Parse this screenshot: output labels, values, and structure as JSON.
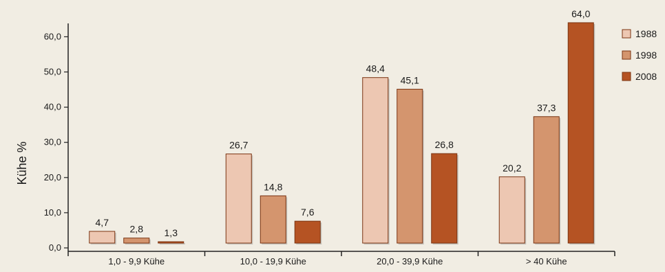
{
  "chart_data": {
    "type": "bar",
    "title": "",
    "xlabel": "",
    "ylabel": "Kühe %",
    "ylim": [
      0,
      64
    ],
    "yticks": [
      0,
      10,
      20,
      30,
      40,
      50,
      60
    ],
    "ytick_labels": [
      "0,0",
      "10,0",
      "20,0",
      "30,0",
      "40,0",
      "50,0",
      "60,0"
    ],
    "grid": false,
    "legend_position": "top-right",
    "categories": [
      "1,0 - 9,9 Kühe",
      "10,0 - 19,9 Kühe",
      "20,0 - 39,9 Kühe",
      "> 40 Kühe"
    ],
    "series": [
      {
        "name": "1988",
        "color": "#edc7b2",
        "values": [
          4.7,
          26.7,
          48.4,
          20.2
        ],
        "labels": [
          "4,7",
          "26,7",
          "48,4",
          "20,2"
        ]
      },
      {
        "name": "1998",
        "color": "#d4956e",
        "values": [
          2.8,
          14.8,
          45.1,
          37.3
        ],
        "labels": [
          "2,8",
          "14,8",
          "45,1",
          "37,3"
        ]
      },
      {
        "name": "2008",
        "color": "#b55323",
        "values": [
          1.3,
          7.6,
          26.8,
          64.0
        ],
        "labels": [
          "1,3",
          "7,6",
          "26,8",
          "64,0"
        ]
      }
    ]
  }
}
